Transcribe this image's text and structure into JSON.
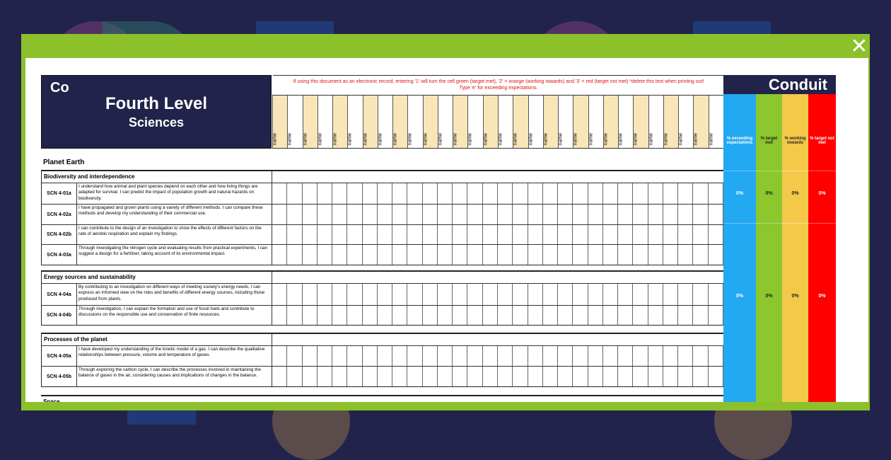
{
  "close_icon": "close-icon",
  "header": {
    "logo_mark": "Co",
    "title": "Fourth Level",
    "subtitle": "Sciences",
    "note_line1": "If using this document as an electronic record, entering '1' will turn the cell green (target met), '2' = orange (working towards) and '3' = red (target not met) *delete this text when printing out!",
    "note_line2": "Type 'e' for exceeding expectations."
  },
  "names": [
    "name",
    "name",
    "name",
    "name",
    "name",
    "name",
    "name",
    "name",
    "name",
    "name",
    "name",
    "name",
    "name",
    "name",
    "name",
    "name",
    "name",
    "name",
    "name",
    "name",
    "name",
    "name",
    "name",
    "name",
    "name",
    "name",
    "name",
    "name",
    "name",
    "name"
  ],
  "topic": "Planet Earth",
  "sections": [
    {
      "title": "Biodiversity and interdependence",
      "rows": [
        {
          "code": "SCN 4-01a",
          "text": "I understand how animal and plant species depend on each other and how living things are adapted for survival. I can predict the impact of population growth and natural hazards on biodiversity."
        },
        {
          "code": "SCN 4-02a",
          "text": "I have propagated and grown plants using a variety of different methods. I can compare these methods and develop my understanding of their commercial use."
        },
        {
          "code": "SCN 4-02b",
          "text": "I can contribute to the design of an investigation to show the effects of different factors on the rate of aerobic respiration and explain my findings."
        },
        {
          "code": "SCN 4-03a",
          "text": "Through investigating the nitrogen cycle and evaluating results from practical experiments, I can suggest a design for a fertiliser, taking account of its environmental impact."
        }
      ]
    },
    {
      "title": "Energy sources and sustainability",
      "rows": [
        {
          "code": "SCN 4-04a",
          "text": "By contributing to an investigation on different ways of meeting society's energy needs, I can express an informed view on the risks and benefits of different energy sources, including those produced from plants."
        },
        {
          "code": "SCN 4-04b",
          "text": "Through investigation, I can explain the formation and use of fossil fuels and contribute to discussions on the responsible use and conservation of finite resources."
        }
      ]
    },
    {
      "title": "Processes of the planet",
      "rows": [
        {
          "code": "SCN 4-05a",
          "text": "I have developed my understanding of the kinetic model of a gas. I can describe the qualitative relationships between pressure, volume and temperature of gases."
        },
        {
          "code": "SCN 4-05b",
          "text": "Through exploring the carbon cycle, I can describe the processes involved in maintaining the balance of gases in the air, considering causes and implications of changes in the balance."
        }
      ]
    },
    {
      "title": "Space",
      "rows": []
    }
  ],
  "panel": {
    "brand": "Conduit",
    "columns": [
      {
        "label": "% exceeding expectations",
        "color": "#23a8f2",
        "values": [
          "0%",
          "0%"
        ]
      },
      {
        "label": "% target met",
        "color": "#8cc72e",
        "values": [
          "0%",
          "0%"
        ]
      },
      {
        "label": "% working towards",
        "color": "#f4c94a",
        "values": [
          "0%",
          "0%"
        ]
      },
      {
        "label": "% target not met",
        "color": "#ff0000",
        "values": [
          "0%",
          "0%"
        ]
      }
    ]
  }
}
